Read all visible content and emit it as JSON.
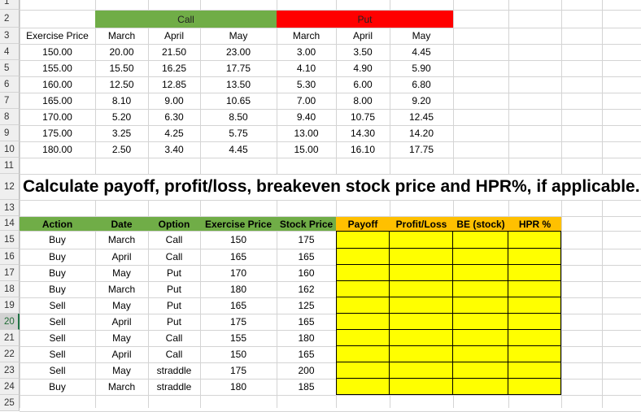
{
  "row_numbers": [
    "1",
    "2",
    "3",
    "4",
    "5",
    "6",
    "7",
    "8",
    "9",
    "10",
    "11",
    "12",
    "13",
    "14",
    "15",
    "16",
    "17",
    "18",
    "19",
    "20",
    "21",
    "22",
    "23",
    "24",
    "25"
  ],
  "selected_row": "20",
  "options_table": {
    "call_label": "Call",
    "put_label": "Put",
    "headers": [
      "Exercise Price",
      "March",
      "April",
      "May",
      "March",
      "April",
      "May"
    ],
    "rows": [
      [
        "150.00",
        "20.00",
        "21.50",
        "23.00",
        "3.00",
        "3.50",
        "4.45"
      ],
      [
        "155.00",
        "15.50",
        "16.25",
        "17.75",
        "4.10",
        "4.90",
        "5.90"
      ],
      [
        "160.00",
        "12.50",
        "12.85",
        "13.50",
        "5.30",
        "6.00",
        "6.80"
      ],
      [
        "165.00",
        "8.10",
        "9.00",
        "10.65",
        "7.00",
        "8.00",
        "9.20"
      ],
      [
        "170.00",
        "5.20",
        "6.30",
        "8.50",
        "9.40",
        "10.75",
        "12.45"
      ],
      [
        "175.00",
        "3.25",
        "4.25",
        "5.75",
        "13.00",
        "14.30",
        "14.20"
      ],
      [
        "180.00",
        "2.50",
        "3.40",
        "4.45",
        "15.00",
        "16.10",
        "17.75"
      ]
    ]
  },
  "instruction": "Calculate payoff, profit/loss, breakeven stock price and HPR%, if applicable.",
  "task_table": {
    "headers": [
      "Action",
      "Date",
      "Option",
      "Exercise Price",
      "Stock Price",
      "Payoff",
      "Profit/Loss",
      "BE (stock)",
      "HPR %"
    ],
    "rows": [
      [
        "Buy",
        "March",
        "Call",
        "150",
        "175"
      ],
      [
        "Buy",
        "April",
        "Call",
        "165",
        "165"
      ],
      [
        "Buy",
        "May",
        "Put",
        "170",
        "160"
      ],
      [
        "Buy",
        "March",
        "Put",
        "180",
        "162"
      ],
      [
        "Sell",
        "May",
        "Put",
        "165",
        "125"
      ],
      [
        "Sell",
        "April",
        "Put",
        "175",
        "165"
      ],
      [
        "Sell",
        "May",
        "Call",
        "155",
        "180"
      ],
      [
        "Sell",
        "April",
        "Call",
        "150",
        "165"
      ],
      [
        "Sell",
        "May",
        "straddle",
        "175",
        "200"
      ],
      [
        "Buy",
        "March",
        "straddle",
        "180",
        "185"
      ]
    ]
  },
  "colors": {
    "call_header": "#70ad47",
    "put_header": "#ff0000",
    "task_header_left": "#70ad47",
    "task_header_right": "#ffc000",
    "answer_cells": "#ffff00"
  }
}
